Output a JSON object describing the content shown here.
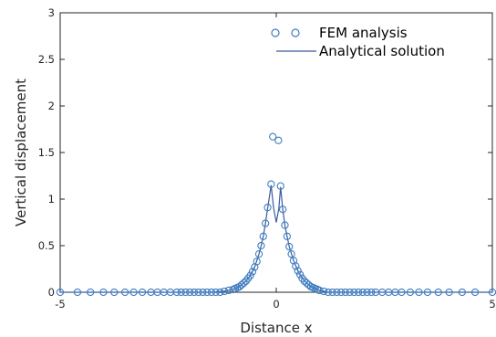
{
  "chart_data": {
    "type": "line",
    "xlabel": "Distance x",
    "ylabel": "Vertical displacement",
    "xlim": [
      -5,
      5
    ],
    "ylim": [
      0,
      3
    ],
    "xticks": [
      -5,
      0,
      5
    ],
    "yticks": [
      0,
      0.5,
      1,
      1.5,
      2,
      2.5,
      3
    ],
    "xtick_labels": [
      "-5",
      "0",
      "5"
    ],
    "ytick_labels": [
      "0",
      "0.5",
      "1",
      "1.5",
      "2",
      "2.5",
      "3"
    ],
    "grid": false,
    "legend": {
      "placement": "top-right"
    },
    "colors": {
      "series": "#3d7ec0",
      "line": "#3a5ba0",
      "axis": "#262626"
    },
    "series": [
      {
        "name": "FEM analysis",
        "marker": "circle",
        "points": [
          {
            "x": -5.0,
            "y": 0
          },
          {
            "x": -4.6,
            "y": 0
          },
          {
            "x": -4.3,
            "y": 0
          },
          {
            "x": -4.0,
            "y": 0
          },
          {
            "x": -3.75,
            "y": 0
          },
          {
            "x": -3.5,
            "y": 0
          },
          {
            "x": -3.3,
            "y": 0
          },
          {
            "x": -3.1,
            "y": 0
          },
          {
            "x": -2.9,
            "y": 0
          },
          {
            "x": -2.75,
            "y": 0
          },
          {
            "x": -2.6,
            "y": 0
          },
          {
            "x": -2.45,
            "y": 0
          },
          {
            "x": -2.3,
            "y": 0
          },
          {
            "x": -2.2,
            "y": 0
          },
          {
            "x": -2.1,
            "y": 0
          },
          {
            "x": -2.0,
            "y": 0
          },
          {
            "x": -1.9,
            "y": 0
          },
          {
            "x": -1.8,
            "y": 0
          },
          {
            "x": -1.7,
            "y": 0
          },
          {
            "x": -1.6,
            "y": 0
          },
          {
            "x": -1.5,
            "y": 0
          },
          {
            "x": -1.4,
            "y": 0
          },
          {
            "x": -1.3,
            "y": 0
          },
          {
            "x": -1.2,
            "y": 0.01
          },
          {
            "x": -1.1,
            "y": 0.02
          },
          {
            "x": -1.0,
            "y": 0.03
          },
          {
            "x": -0.95,
            "y": 0.04
          },
          {
            "x": -0.9,
            "y": 0.05
          },
          {
            "x": -0.85,
            "y": 0.06
          },
          {
            "x": -0.8,
            "y": 0.08
          },
          {
            "x": -0.75,
            "y": 0.1
          },
          {
            "x": -0.7,
            "y": 0.12
          },
          {
            "x": -0.65,
            "y": 0.15
          },
          {
            "x": -0.6,
            "y": 0.18
          },
          {
            "x": -0.55,
            "y": 0.22
          },
          {
            "x": -0.5,
            "y": 0.27
          },
          {
            "x": -0.45,
            "y": 0.33
          },
          {
            "x": -0.4,
            "y": 0.41
          },
          {
            "x": -0.35,
            "y": 0.5
          },
          {
            "x": -0.3,
            "y": 0.6
          },
          {
            "x": -0.25,
            "y": 0.74
          },
          {
            "x": -0.2,
            "y": 0.91
          },
          {
            "x": -0.12,
            "y": 1.16
          },
          {
            "x": -0.08,
            "y": 1.67
          },
          {
            "x": 0.05,
            "y": 1.63
          },
          {
            "x": 0.1,
            "y": 1.14
          },
          {
            "x": 0.15,
            "y": 0.89
          },
          {
            "x": 0.2,
            "y": 0.72
          },
          {
            "x": 0.25,
            "y": 0.6
          },
          {
            "x": 0.3,
            "y": 0.49
          },
          {
            "x": 0.35,
            "y": 0.41
          },
          {
            "x": 0.4,
            "y": 0.34
          },
          {
            "x": 0.45,
            "y": 0.28
          },
          {
            "x": 0.5,
            "y": 0.23
          },
          {
            "x": 0.55,
            "y": 0.19
          },
          {
            "x": 0.6,
            "y": 0.15
          },
          {
            "x": 0.65,
            "y": 0.12
          },
          {
            "x": 0.7,
            "y": 0.1
          },
          {
            "x": 0.75,
            "y": 0.08
          },
          {
            "x": 0.8,
            "y": 0.06
          },
          {
            "x": 0.85,
            "y": 0.05
          },
          {
            "x": 0.9,
            "y": 0.04
          },
          {
            "x": 0.95,
            "y": 0.03
          },
          {
            "x": 1.0,
            "y": 0.02
          },
          {
            "x": 1.1,
            "y": 0.01
          },
          {
            "x": 1.2,
            "y": 0
          },
          {
            "x": 1.3,
            "y": 0
          },
          {
            "x": 1.4,
            "y": 0
          },
          {
            "x": 1.5,
            "y": 0
          },
          {
            "x": 1.6,
            "y": 0
          },
          {
            "x": 1.7,
            "y": 0
          },
          {
            "x": 1.8,
            "y": 0
          },
          {
            "x": 1.9,
            "y": 0
          },
          {
            "x": 2.0,
            "y": 0
          },
          {
            "x": 2.1,
            "y": 0
          },
          {
            "x": 2.2,
            "y": 0
          },
          {
            "x": 2.3,
            "y": 0
          },
          {
            "x": 2.45,
            "y": 0
          },
          {
            "x": 2.6,
            "y": 0
          },
          {
            "x": 2.75,
            "y": 0
          },
          {
            "x": 2.9,
            "y": 0
          },
          {
            "x": 3.1,
            "y": 0
          },
          {
            "x": 3.3,
            "y": 0
          },
          {
            "x": 3.5,
            "y": 0
          },
          {
            "x": 3.75,
            "y": 0
          },
          {
            "x": 4.0,
            "y": 0
          },
          {
            "x": 4.3,
            "y": 0
          },
          {
            "x": 4.6,
            "y": 0
          },
          {
            "x": 5.0,
            "y": 0
          }
        ]
      },
      {
        "name": "Analytical solution",
        "marker": "none",
        "points": [
          {
            "x": -5.0,
            "y": 0
          },
          {
            "x": -2.0,
            "y": 0
          },
          {
            "x": -1.5,
            "y": 0
          },
          {
            "x": -1.2,
            "y": 0.01
          },
          {
            "x": -1.0,
            "y": 0.03
          },
          {
            "x": -0.9,
            "y": 0.05
          },
          {
            "x": -0.8,
            "y": 0.08
          },
          {
            "x": -0.7,
            "y": 0.12
          },
          {
            "x": -0.6,
            "y": 0.18
          },
          {
            "x": -0.5,
            "y": 0.27
          },
          {
            "x": -0.4,
            "y": 0.41
          },
          {
            "x": -0.35,
            "y": 0.5
          },
          {
            "x": -0.3,
            "y": 0.6
          },
          {
            "x": -0.25,
            "y": 0.74
          },
          {
            "x": -0.2,
            "y": 0.9
          },
          {
            "x": -0.15,
            "y": 1.05
          },
          {
            "x": -0.12,
            "y": 1.15
          },
          {
            "x": -0.06,
            "y": 0.9
          },
          {
            "x": 0.0,
            "y": 0.75
          },
          {
            "x": 0.06,
            "y": 0.9
          },
          {
            "x": 0.1,
            "y": 1.13
          },
          {
            "x": 0.15,
            "y": 0.89
          },
          {
            "x": 0.2,
            "y": 0.72
          },
          {
            "x": 0.25,
            "y": 0.6
          },
          {
            "x": 0.3,
            "y": 0.49
          },
          {
            "x": 0.4,
            "y": 0.34
          },
          {
            "x": 0.5,
            "y": 0.23
          },
          {
            "x": 0.6,
            "y": 0.15
          },
          {
            "x": 0.7,
            "y": 0.1
          },
          {
            "x": 0.8,
            "y": 0.06
          },
          {
            "x": 0.9,
            "y": 0.04
          },
          {
            "x": 1.0,
            "y": 0.02
          },
          {
            "x": 1.2,
            "y": 0
          },
          {
            "x": 1.5,
            "y": 0
          },
          {
            "x": 2.0,
            "y": 0
          },
          {
            "x": 5.0,
            "y": 0
          }
        ]
      }
    ]
  }
}
